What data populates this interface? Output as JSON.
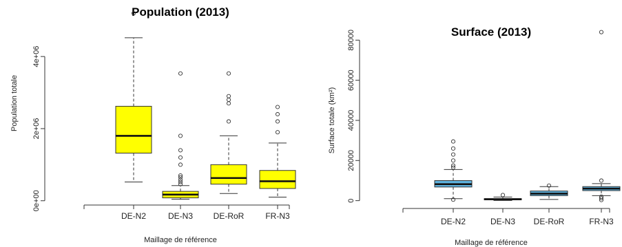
{
  "chart_data": [
    {
      "type": "boxplot",
      "title": "Population (2013)",
      "xlabel": "Maillage de référence",
      "ylabel": "Population totale",
      "ylim": [
        -100000,
        5300000
      ],
      "yticks": [
        0,
        2000000,
        4000000
      ],
      "ytick_labels": [
        "0e+00",
        "2e+06",
        "4e+06"
      ],
      "box_color": "#ffff00",
      "categories": [
        "DE-N2",
        "DE-N3",
        "DE-RoR",
        "FR-N3"
      ],
      "boxes": [
        {
          "min": 520000,
          "q1": 1320000,
          "median": 1800000,
          "q3": 2620000,
          "max": 4520000,
          "outliers": [
            5200000
          ]
        },
        {
          "min": 40000,
          "q1": 80000,
          "median": 170000,
          "q3": 260000,
          "max": 420000,
          "outliers": [
            460000,
            520000,
            580000,
            650000,
            700000,
            1000000,
            1200000,
            1400000,
            1800000,
            3530000
          ]
        },
        {
          "min": 200000,
          "q1": 460000,
          "median": 630000,
          "q3": 1000000,
          "max": 1800000,
          "outliers": [
            2200000,
            2700000,
            2800000,
            2900000,
            3530000
          ]
        },
        {
          "min": 100000,
          "q1": 340000,
          "median": 540000,
          "q3": 840000,
          "max": 1600000,
          "outliers": [
            1900000,
            2200000,
            2400000,
            2600000
          ]
        }
      ]
    },
    {
      "type": "boxplot",
      "title": "Surface (2013)",
      "xlabel": "Maillage de référence",
      "ylabel": "Surface totale (km²)",
      "ylim": [
        -1500,
        88000
      ],
      "yticks": [
        0,
        20000,
        40000,
        60000,
        80000
      ],
      "ytick_labels": [
        "0",
        "20000",
        "40000",
        "60000",
        "80000"
      ],
      "box_color": "#5fb3df",
      "categories": [
        "DE-N2",
        "DE-N3",
        "DE-RoR",
        "FR-N3"
      ],
      "boxes": [
        {
          "min": 1000,
          "q1": 6800,
          "median": 8200,
          "q3": 10000,
          "max": 15500,
          "outliers": [
            500,
            16500,
            17500,
            20000,
            23000,
            26000,
            29500
          ]
        },
        {
          "min": 100,
          "q1": 400,
          "median": 700,
          "q3": 1000,
          "max": 1800,
          "outliers": [
            2800
          ]
        },
        {
          "min": 600,
          "q1": 2500,
          "median": 3500,
          "q3": 4800,
          "max": 7000,
          "outliers": [
            7500
          ]
        },
        {
          "min": 2500,
          "q1": 5000,
          "median": 6000,
          "q3": 7000,
          "max": 8500,
          "outliers": [
            300,
            1200,
            2000,
            10000,
            84000
          ]
        }
      ]
    }
  ]
}
